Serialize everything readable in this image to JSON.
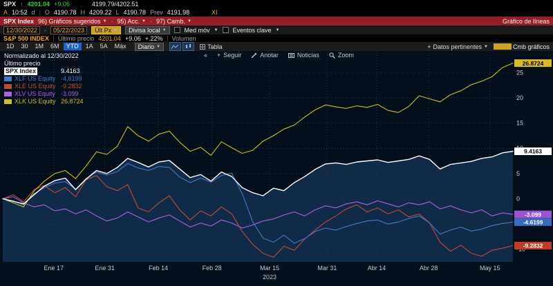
{
  "quote_bar": {
    "ticker": "SPX",
    "price": "4201.04",
    "change": "+9.06",
    "range": "4199.79/4202.51",
    "at_label": "A",
    "time": "10:52",
    "delay": "d",
    "open_label": "O",
    "open": "4190.78",
    "high_label": "H",
    "high": "4209.22",
    "low_label": "L",
    "low": "4190.78",
    "prev_label": "Prev",
    "prev": "4191.98",
    "venue": "XI"
  },
  "menu_bar": {
    "security": "SPX Index",
    "suggested": "96) Gráficos sugeridos",
    "actions": "95) Acc.",
    "edit": "97) Camb.",
    "title": "Gráfico de líneas"
  },
  "settings_bar": {
    "date_from": "12/30/2022",
    "date_to": "05/22/2023",
    "px_type": "Últ Px",
    "currency": "Divisa local",
    "mov_avg": "Med móv",
    "key_events": "Eventos clave"
  },
  "info_bar": {
    "name": "S&P 500 INDEX",
    "last_label": "Último precio",
    "last": "4201.04",
    "change": "+9.06",
    "pct_change": "+.22%",
    "volume_label": "Volumen"
  },
  "toolbar": {
    "ranges": [
      "1D",
      "30",
      "1M",
      "6M",
      "YTD",
      "1A",
      "5A",
      "Máx"
    ],
    "active_range": "YTD",
    "frequency": "Diario",
    "table_label": "Tabla",
    "related_data": "Datos pertinentes",
    "change_charts": "Cmb gráficos"
  },
  "chart_toolbar": {
    "collapse": "«",
    "track": "Seguir",
    "annotate": "Anotar",
    "news": "Noticias",
    "zoom": "Zoom"
  },
  "chart_data": {
    "type": "line",
    "title": "Normalizado al 12/30/2022",
    "subtitle": "Último precio",
    "ylim": [
      -12.5,
      29
    ],
    "yticks": [
      25,
      20,
      15,
      10,
      5,
      0,
      -5,
      -10
    ],
    "grid": true,
    "legend_position": "top-left",
    "year_label": "2023",
    "year_pos": 0.523,
    "xticks": [
      {
        "label": "Ene 17",
        "pos": 0.1
      },
      {
        "label": "Ene 31",
        "pos": 0.2
      },
      {
        "label": "Feb 14",
        "pos": 0.305
      },
      {
        "label": "Feb 28",
        "pos": 0.41
      },
      {
        "label": "Mar 15",
        "pos": 0.523
      },
      {
        "label": "Mar 31",
        "pos": 0.636
      },
      {
        "label": "Abr 14",
        "pos": 0.733
      },
      {
        "label": "Abr 28",
        "pos": 0.835
      },
      {
        "label": "May 15",
        "pos": 0.955
      }
    ],
    "draw_order": [
      2,
      3,
      1,
      4,
      0
    ],
    "series": [
      {
        "name": "SPX Index",
        "color": "#ffffff",
        "badge_bg": "#ffffff",
        "badge_fg": "#000000",
        "fill": "#112a47",
        "last": "9.4163",
        "values": [
          0,
          -0.5,
          -1.0,
          0.8,
          2.5,
          3.6,
          4.1,
          1.8,
          3.9,
          5.6,
          5.0,
          6.2,
          8.0,
          7.2,
          6.3,
          7.3,
          7.6,
          5.9,
          4.2,
          4.8,
          3.5,
          5.3,
          4.4,
          2.2,
          1.2,
          0.6,
          2.1,
          1.6,
          3.2,
          4.4,
          5.8,
          6.9,
          7.1,
          6.8,
          7.3,
          7.5,
          7.7,
          7.2,
          7.5,
          7.8,
          8.5,
          7.8,
          5.9,
          6.8,
          7.1,
          7.4,
          8.0,
          8.3,
          9.1,
          9.4163
        ]
      },
      {
        "name": "XLF US Equity",
        "color": "#4478c8",
        "badge_bg": "#3a6cbd",
        "badge_fg": "#ffffff",
        "last": "-4.6199",
        "values": [
          0,
          -0.4,
          -1.2,
          1.0,
          2.2,
          3.1,
          3.4,
          1.9,
          4.0,
          5.3,
          4.7,
          5.4,
          7.0,
          6.1,
          5.6,
          6.4,
          6.2,
          4.3,
          3.2,
          4.1,
          3.3,
          4.6,
          5.1,
          1.0,
          -4.5,
          -7.8,
          -8.6,
          -7.2,
          -8.8,
          -7.9,
          -6.5,
          -5.8,
          -6.2,
          -5.5,
          -4.9,
          -4.4,
          -4.2,
          -5.0,
          -4.6,
          -3.9,
          -3.4,
          -4.8,
          -7.0,
          -6.2,
          -5.6,
          -6.4,
          -6.0,
          -5.3,
          -4.9,
          -4.6199
        ]
      },
      {
        "name": "XLE US Equity",
        "color": "#bf4d33",
        "badge_bg": "#c23b2a",
        "badge_fg": "#ffffff",
        "last": "-9.2832",
        "values": [
          0,
          0.8,
          -0.6,
          1.8,
          2.6,
          1.2,
          2.2,
          0.4,
          3.8,
          4.6,
          2.4,
          1.6,
          2.8,
          -1.8,
          -2.6,
          -0.8,
          0.6,
          -2.2,
          -4.2,
          -2.4,
          -3.4,
          -1.6,
          -3.0,
          -6.5,
          -9.0,
          -10.8,
          -11.6,
          -9.4,
          -10.2,
          -8.0,
          -6.2,
          -4.6,
          -3.4,
          -2.0,
          -1.2,
          -2.6,
          -1.8,
          -3.0,
          -2.2,
          -3.6,
          -3.0,
          -4.8,
          -8.6,
          -10.4,
          -9.2,
          -10.8,
          -11.4,
          -10.2,
          -9.8,
          -9.2832
        ]
      },
      {
        "name": "XLV US Equity",
        "color": "#a962dd",
        "badge_bg": "#9a55d0",
        "badge_fg": "#ffffff",
        "last": "-3.099",
        "values": [
          0,
          0.4,
          -0.8,
          -1.6,
          -1.2,
          -2.4,
          -2.0,
          -3.0,
          -2.2,
          -3.4,
          -4.4,
          -3.8,
          -2.6,
          -3.6,
          -4.6,
          -3.8,
          -3.2,
          -4.4,
          -5.6,
          -4.8,
          -5.4,
          -4.2,
          -4.8,
          -5.8,
          -5.2,
          -4.4,
          -4.0,
          -3.2,
          -2.6,
          -3.4,
          -2.2,
          -1.4,
          -1.8,
          -1.0,
          -0.6,
          -1.2,
          -0.4,
          -1.0,
          -1.6,
          -0.8,
          -1.2,
          -0.6,
          -2.0,
          -1.4,
          -2.2,
          -2.8,
          -2.2,
          -3.4,
          -2.8,
          -3.099
        ]
      },
      {
        "name": "XLK US Equity",
        "color": "#cdbd2e",
        "badge_bg": "#d9b927",
        "badge_fg": "#000000",
        "last": "26.8724",
        "values": [
          0,
          -0.8,
          -1.6,
          1.5,
          3.5,
          5.0,
          5.6,
          4.0,
          6.5,
          9.3,
          8.8,
          10.4,
          14.3,
          12.5,
          11.4,
          12.8,
          13.4,
          11.2,
          9.4,
          10.2,
          8.6,
          11.3,
          10.1,
          9.0,
          9.6,
          11.4,
          12.5,
          13.8,
          14.6,
          16.2,
          17.6,
          18.6,
          18.2,
          17.9,
          18.4,
          18.1,
          18.7,
          17.5,
          17.1,
          18.3,
          20.4,
          19.8,
          19.2,
          20.6,
          21.4,
          22.6,
          23.3,
          24.2,
          26.0,
          26.8724
        ]
      }
    ]
  }
}
